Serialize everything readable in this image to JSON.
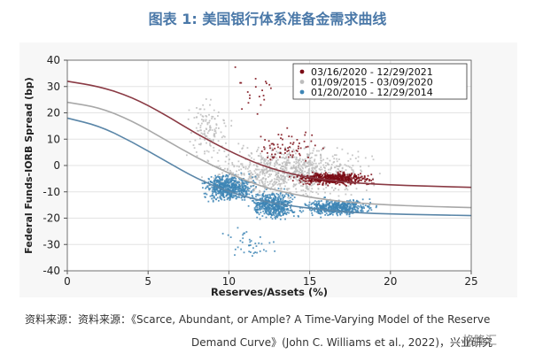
{
  "title": "图表 1:  美国银行体系准备金需求曲线",
  "source_line1": "资料来源：资料来源：《Scarce, Abundant, or Ample? A Time-Varying Model of the Reserve",
  "source_line2": "Demand Curve》(John C. Williams et al., 2022)，兴业研究",
  "watermark": "格隆汇",
  "chart_data": {
    "type": "scatter",
    "xlabel": "Reserves/Assets (%)",
    "ylabel": "Federal Funds-IORB Spread (bp)",
    "xlim": [
      0,
      25
    ],
    "ylim": [
      -40,
      40
    ],
    "xticks": [
      0,
      5,
      10,
      15,
      20,
      25
    ],
    "yticks": [
      -40,
      -30,
      -20,
      -10,
      0,
      10,
      20,
      30,
      40
    ],
    "legend_position": "top-right",
    "series": [
      {
        "name": "03/16/2020 - 12/29/2021",
        "color": "#7a0a14",
        "curve_color": "#8a3a44",
        "curve": {
          "x": [
            0,
            2,
            4,
            6,
            8,
            10,
            12,
            14,
            16,
            18,
            20,
            22,
            25
          ],
          "y": [
            32,
            30,
            26,
            19.5,
            12,
            5.5,
            0,
            -3.5,
            -5.5,
            -6.7,
            -7.4,
            -7.8,
            -8.3
          ]
        },
        "clusters": [
          {
            "x": [
              13.5,
              19.5
            ],
            "y": [
              -8,
              -2
            ],
            "n": 520
          },
          {
            "x": [
              10.5,
              16.5
            ],
            "y": [
              -2,
              16
            ],
            "n": 70
          },
          {
            "x": [
              9.5,
              13.5
            ],
            "y": [
              18,
              40
            ],
            "n": 20
          }
        ]
      },
      {
        "name": "01/09/2015 - 03/09/2020",
        "color": "#bdbdbd",
        "curve_color": "#a8a8a8",
        "curve": {
          "x": [
            0,
            2,
            4,
            6,
            8,
            10,
            12,
            14,
            16,
            18,
            20,
            22,
            25
          ],
          "y": [
            24,
            22,
            17,
            10,
            3,
            -3,
            -8,
            -11,
            -13,
            -14.3,
            -15,
            -15.5,
            -16
          ]
        },
        "clusters": [
          {
            "x": [
              7.5,
              20
            ],
            "y": [
              -15,
              10
            ],
            "n": 900
          },
          {
            "x": [
              7.0,
              10.5
            ],
            "y": [
              0,
              28
            ],
            "n": 120
          }
        ]
      },
      {
        "name": "01/20/2010 - 12/29/2014",
        "color": "#3d85b5",
        "curve_color": "#5a86a8",
        "curve": {
          "x": [
            0,
            2,
            4,
            6,
            8,
            10,
            12,
            14,
            16,
            18,
            20,
            22,
            25
          ],
          "y": [
            18,
            15,
            9,
            2,
            -5,
            -10,
            -13.5,
            -15.5,
            -17,
            -18,
            -18.4,
            -18.7,
            -19
          ]
        },
        "clusters": [
          {
            "x": [
              8,
              12
            ],
            "y": [
              -15,
              -2
            ],
            "n": 600
          },
          {
            "x": [
              11,
              14.5
            ],
            "y": [
              -22,
              -8
            ],
            "n": 500
          },
          {
            "x": [
              14,
              19.5
            ],
            "y": [
              -20,
              -12
            ],
            "n": 500
          },
          {
            "x": [
              9,
              14
            ],
            "y": [
              -38,
              -22
            ],
            "n": 40
          }
        ]
      }
    ]
  }
}
